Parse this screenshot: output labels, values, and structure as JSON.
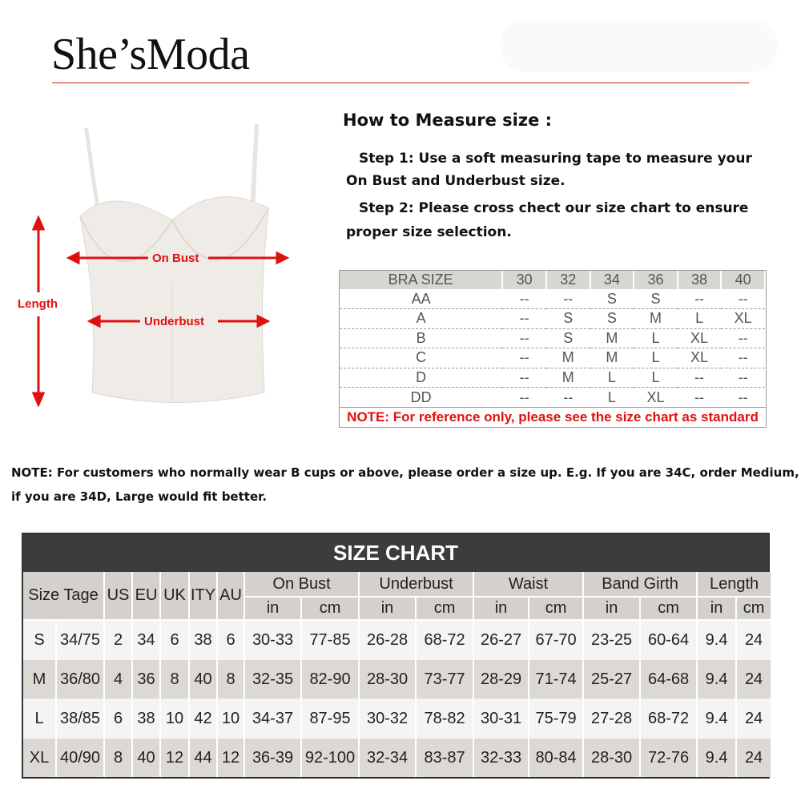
{
  "brand": {
    "logo": "She’sModa"
  },
  "illustration": {
    "on_bust": "On Bust",
    "underbust": "Underbust",
    "length": "Length"
  },
  "measure": {
    "title": "How to Measure size :",
    "step1_line1": "Step 1: Use a soft measuring tape to measure your",
    "step1_line2": "On Bust and Underbust size.",
    "step2_line1": "Step 2: Please cross chect our size chart to ensure",
    "step2_line2": "proper size selection."
  },
  "bra_table": {
    "header": [
      "BRA SIZE",
      "30",
      "32",
      "34",
      "36",
      "38",
      "40"
    ],
    "rows": [
      [
        "AA",
        "--",
        "--",
        "S",
        "S",
        "--",
        "--"
      ],
      [
        "A",
        "--",
        "S",
        "S",
        "M",
        "L",
        "XL"
      ],
      [
        "B",
        "--",
        "S",
        "M",
        "L",
        "XL",
        "--"
      ],
      [
        "C",
        "--",
        "M",
        "M",
        "L",
        "XL",
        "--"
      ],
      [
        "D",
        "--",
        "M",
        "L",
        "L",
        "--",
        "--"
      ],
      [
        "DD",
        "--",
        "--",
        "L",
        "XL",
        "--",
        "--"
      ]
    ],
    "note": "NOTE: For reference only, please see the size chart as standard"
  },
  "note": {
    "line1": "NOTE: For customers who normally wear B cups or above, please order a size up. E.g. If you are 34C, order Medium,",
    "line2": "if you are 34D, Large would fit better."
  },
  "size_chart": {
    "title": "SIZE CHART",
    "size_tage": "Size Tage",
    "countries": [
      "US",
      "EU",
      "UK",
      "ITY",
      "AU"
    ],
    "groups": [
      "On Bust",
      "Underbust",
      "Waist",
      "Band Girth",
      "Length"
    ],
    "units": [
      "in",
      "cm"
    ],
    "rows": [
      [
        "S",
        "34/75",
        "2",
        "34",
        "6",
        "38",
        "6",
        "30-33",
        "77-85",
        "26-28",
        "68-72",
        "26-27",
        "67-70",
        "23-25",
        "60-64",
        "9.4",
        "24"
      ],
      [
        "M",
        "36/80",
        "4",
        "36",
        "8",
        "40",
        "8",
        "32-35",
        "82-90",
        "28-30",
        "73-77",
        "28-29",
        "71-74",
        "25-27",
        "64-68",
        "9.4",
        "24"
      ],
      [
        "L",
        "38/85",
        "6",
        "38",
        "10",
        "42",
        "10",
        "34-37",
        "87-95",
        "30-32",
        "78-82",
        "30-31",
        "75-79",
        "27-28",
        "68-72",
        "9.4",
        "24"
      ],
      [
        "XL",
        "40/90",
        "8",
        "40",
        "12",
        "44",
        "12",
        "36-39",
        "92-100",
        "32-34",
        "83-87",
        "32-33",
        "80-84",
        "28-30",
        "72-76",
        "9.4",
        "24"
      ]
    ]
  },
  "colors": {
    "accent_red": "#e01010",
    "chart_header": "#3c3c3c"
  }
}
